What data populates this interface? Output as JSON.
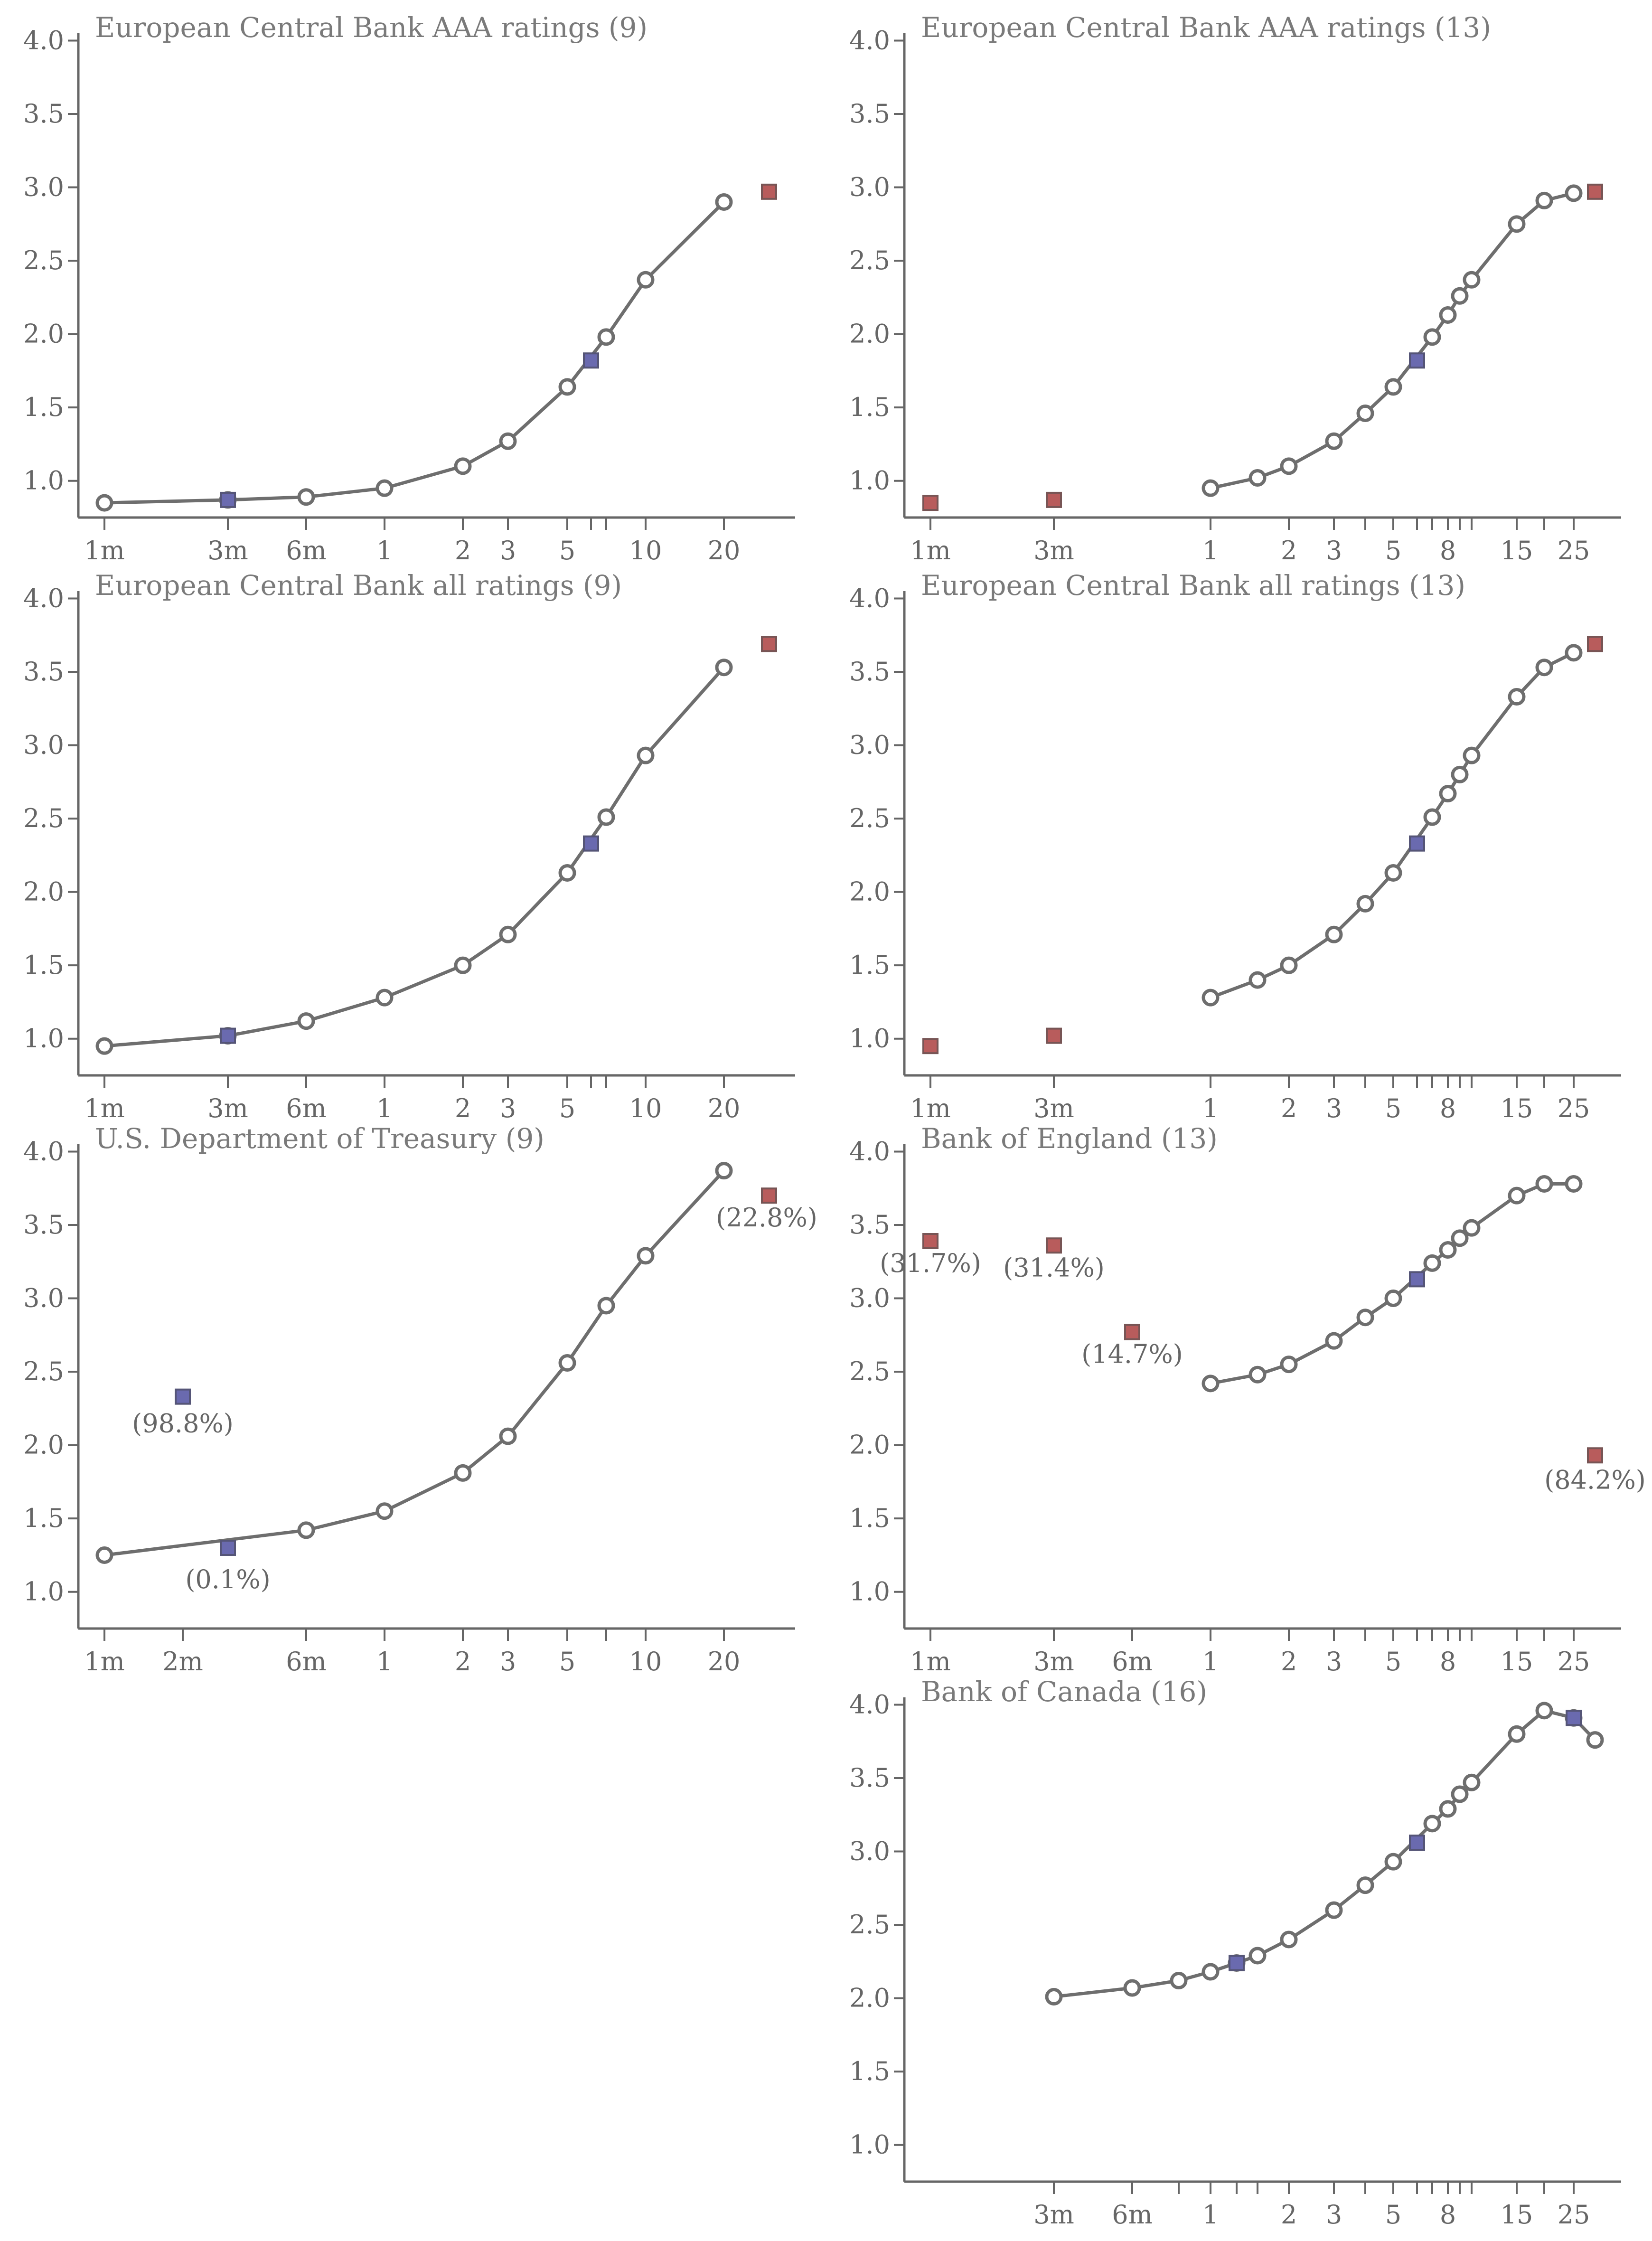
{
  "chart_data": [
    {
      "type": "line",
      "title": "European Central Bank AAA ratings (9)",
      "x_tick_labels": [
        "1m",
        "3m",
        "6m",
        "1",
        "2",
        "3",
        "5",
        "10",
        "20"
      ],
      "ylim": [
        0.75,
        4.05
      ],
      "y_ticks": [
        "1.0",
        "1.5",
        "2.0",
        "2.5",
        "3.0",
        "3.5",
        "4.0"
      ],
      "curve": {
        "x": [
          0.0833,
          0.25,
          0.5,
          1,
          2,
          3,
          5,
          7,
          10,
          20
        ],
        "y": [
          0.85,
          0.87,
          0.89,
          0.95,
          1.1,
          1.27,
          1.64,
          1.98,
          2.37,
          2.9
        ]
      },
      "blue_points": [
        {
          "x": 0.25,
          "y": 0.87
        },
        {
          "x": 6,
          "y": 1.82
        }
      ],
      "red_points": [
        {
          "x": 30,
          "y": 2.97
        }
      ],
      "annotations": []
    },
    {
      "type": "line",
      "title": "European Central Bank AAA ratings (13)",
      "x_tick_labels": [
        "1m",
        "3m",
        "1",
        "2",
        "3",
        "5",
        "8",
        "15",
        "25"
      ],
      "ylim": [
        0.75,
        4.05
      ],
      "y_ticks": [
        "1.0",
        "1.5",
        "2.0",
        "2.5",
        "3.0",
        "3.5",
        "4.0"
      ],
      "curve": {
        "x": [
          1,
          1.5,
          2,
          3,
          4,
          5,
          7,
          8,
          9,
          10,
          15,
          20,
          25
        ],
        "y": [
          0.95,
          1.02,
          1.1,
          1.27,
          1.46,
          1.64,
          1.98,
          2.13,
          2.26,
          2.37,
          2.75,
          2.91,
          2.96
        ]
      },
      "blue_points": [
        {
          "x": 6,
          "y": 1.82
        }
      ],
      "red_points": [
        {
          "x": 0.0833,
          "y": 0.85
        },
        {
          "x": 0.25,
          "y": 0.87
        },
        {
          "x": 30,
          "y": 2.97
        }
      ],
      "annotations": []
    },
    {
      "type": "line",
      "title": "European Central Bank all ratings (9)",
      "x_tick_labels": [
        "1m",
        "3m",
        "6m",
        "1",
        "2",
        "3",
        "5",
        "10",
        "20"
      ],
      "ylim": [
        0.75,
        4.05
      ],
      "y_ticks": [
        "1.0",
        "1.5",
        "2.0",
        "2.5",
        "3.0",
        "3.5",
        "4.0"
      ],
      "curve": {
        "x": [
          0.0833,
          0.25,
          0.5,
          1,
          2,
          3,
          5,
          7,
          10,
          20
        ],
        "y": [
          0.95,
          1.02,
          1.12,
          1.28,
          1.5,
          1.71,
          2.13,
          2.51,
          2.93,
          3.53
        ]
      },
      "blue_points": [
        {
          "x": 0.25,
          "y": 1.02
        },
        {
          "x": 6,
          "y": 2.33
        }
      ],
      "red_points": [
        {
          "x": 30,
          "y": 3.69
        }
      ],
      "annotations": []
    },
    {
      "type": "line",
      "title": "European Central Bank all ratings (13)",
      "x_tick_labels": [
        "1m",
        "3m",
        "1",
        "2",
        "3",
        "5",
        "8",
        "15",
        "25"
      ],
      "ylim": [
        0.75,
        4.05
      ],
      "y_ticks": [
        "1.0",
        "1.5",
        "2.0",
        "2.5",
        "3.0",
        "3.5",
        "4.0"
      ],
      "curve": {
        "x": [
          1,
          1.5,
          2,
          3,
          4,
          5,
          7,
          8,
          9,
          10,
          15,
          20,
          25
        ],
        "y": [
          1.28,
          1.4,
          1.5,
          1.71,
          1.92,
          2.13,
          2.51,
          2.67,
          2.8,
          2.93,
          3.33,
          3.53,
          3.63
        ]
      },
      "blue_points": [
        {
          "x": 6,
          "y": 2.33
        }
      ],
      "red_points": [
        {
          "x": 0.0833,
          "y": 0.95
        },
        {
          "x": 0.25,
          "y": 1.02
        },
        {
          "x": 30,
          "y": 3.69
        }
      ],
      "annotations": []
    },
    {
      "type": "line",
      "title": "U.S. Department of Treasury (9)",
      "x_tick_labels": [
        "1m",
        "2m",
        "6m",
        "1",
        "2",
        "3",
        "5",
        "10",
        "20"
      ],
      "ylim": [
        0.75,
        4.05
      ],
      "y_ticks": [
        "1.0",
        "1.5",
        "2.0",
        "2.5",
        "3.0",
        "3.5",
        "4.0"
      ],
      "curve": {
        "x": [
          0.0833,
          0.5,
          1,
          2,
          3,
          5,
          7,
          10,
          20
        ],
        "y": [
          1.25,
          1.42,
          1.55,
          1.81,
          2.06,
          2.56,
          2.95,
          3.29,
          3.87
        ]
      },
      "blue_points": [
        {
          "x": 0.1667,
          "y": 2.33
        },
        {
          "x": 0.25,
          "y": 1.3
        }
      ],
      "red_points": [
        {
          "x": 30,
          "y": 3.7
        }
      ],
      "annotations": [
        {
          "text": "(98.8%)",
          "x": 0.1667,
          "y": 2.33
        },
        {
          "text": "(0.1%)",
          "x": 0.25,
          "y": 1.3
        },
        {
          "text": "(22.8%)",
          "x": 30,
          "y": 3.7
        }
      ]
    },
    {
      "type": "line",
      "title": "Bank of England (13)",
      "x_tick_labels": [
        "1m",
        "3m",
        "6m",
        "1",
        "2",
        "3",
        "5",
        "8",
        "15",
        "25"
      ],
      "ylim": [
        0.75,
        4.05
      ],
      "y_ticks": [
        "1.0",
        "1.5",
        "2.0",
        "2.5",
        "3.0",
        "3.5",
        "4.0"
      ],
      "curve": {
        "x": [
          1,
          1.5,
          2,
          3,
          4,
          5,
          7,
          8,
          9,
          10,
          15,
          20,
          25
        ],
        "y": [
          2.42,
          2.48,
          2.55,
          2.71,
          2.87,
          3.0,
          3.24,
          3.33,
          3.41,
          3.48,
          3.7,
          3.78,
          3.78
        ]
      },
      "blue_points": [
        {
          "x": 6,
          "y": 3.13
        }
      ],
      "red_points": [
        {
          "x": 0.0833,
          "y": 3.39
        },
        {
          "x": 0.25,
          "y": 3.36
        },
        {
          "x": 0.5,
          "y": 2.77
        },
        {
          "x": 30,
          "y": 1.93
        }
      ],
      "annotations": [
        {
          "text": "(31.7%)",
          "x": 0.0833,
          "y": 3.39
        },
        {
          "text": "(31.4%)",
          "x": 0.25,
          "y": 3.36
        },
        {
          "text": "(14.7%)",
          "x": 0.5,
          "y": 2.77
        },
        {
          "text": "(84.2%)",
          "x": 30,
          "y": 1.93
        }
      ]
    },
    {
      "type": "line",
      "title": "Bank of Canada (16)",
      "x_tick_labels": [
        "3m",
        "6m",
        "1",
        "2",
        "3",
        "5",
        "8",
        "15",
        "25"
      ],
      "ylim": [
        0.75,
        4.05
      ],
      "y_ticks": [
        "1.0",
        "1.5",
        "2.0",
        "2.5",
        "3.0",
        "3.5",
        "4.0"
      ],
      "curve": {
        "x": [
          0.25,
          0.5,
          0.75,
          1,
          1.25,
          1.5,
          2,
          3,
          4,
          5,
          7,
          8,
          9,
          10,
          15,
          20,
          25,
          30
        ],
        "y": [
          2.01,
          2.07,
          2.12,
          2.18,
          2.24,
          2.29,
          2.4,
          2.6,
          2.77,
          2.93,
          3.19,
          3.29,
          3.39,
          3.47,
          3.8,
          3.96,
          3.91,
          3.76
        ]
      },
      "blue_points": [
        {
          "x": 1.25,
          "y": 2.24
        },
        {
          "x": 6,
          "y": 3.06
        },
        {
          "x": 25,
          "y": 3.91
        }
      ],
      "red_points": [],
      "annotations": []
    }
  ],
  "colors": {
    "axis": "#666666",
    "line": "#6e6e6e",
    "blue": "#6a6aaf",
    "red": "#b85c5c",
    "title": "#7a7a7a"
  }
}
